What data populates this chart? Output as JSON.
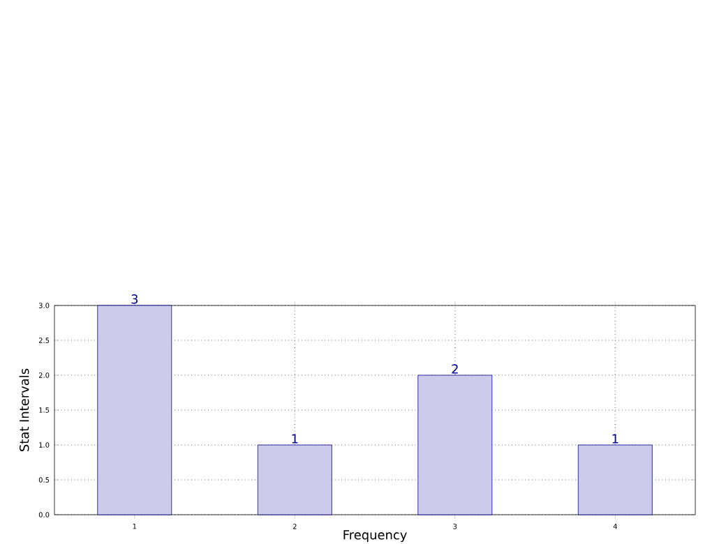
{
  "chart_data": {
    "type": "bar",
    "xlabel": "Frequency",
    "ylabel": "Stat Intervals",
    "categories": [
      "1",
      "2",
      "3",
      "4"
    ],
    "values": [
      3,
      1,
      2,
      1
    ],
    "color": "#ccccea",
    "ylim": [
      0,
      3
    ],
    "yticks": [
      {
        "value": 0,
        "label": "0.0"
      },
      {
        "value": 0.5,
        "label": "0.5"
      },
      {
        "value": 1,
        "label": "1.0"
      },
      {
        "value": 1.5,
        "label": "1.5"
      },
      {
        "value": 2,
        "label": "2.0"
      },
      {
        "value": 2.5,
        "label": "2.5"
      },
      {
        "value": 3,
        "label": "3.0"
      }
    ],
    "grid": true,
    "data_labels": true
  }
}
